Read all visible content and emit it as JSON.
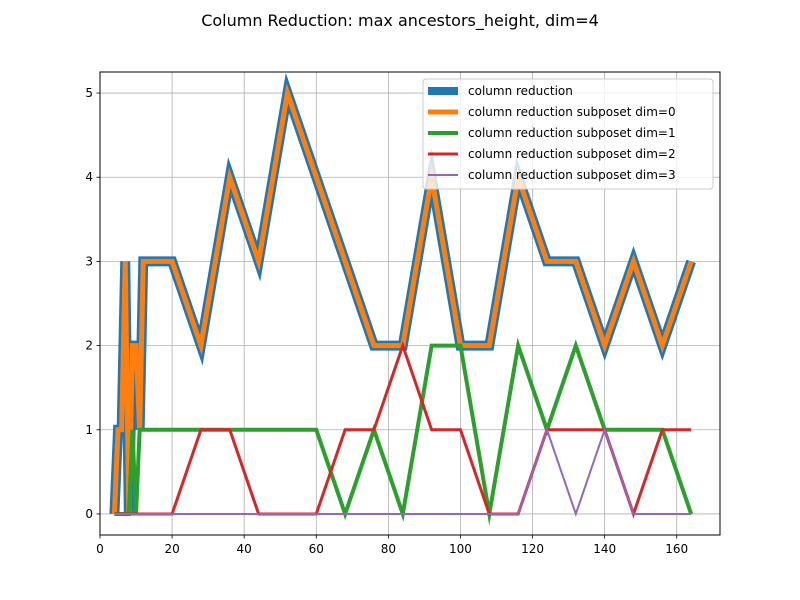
{
  "chart_data": {
    "type": "line",
    "title": "Column Reduction: max ancestors_height, dim=4",
    "xlabel": "",
    "ylabel": "",
    "xlim": [
      0,
      172
    ],
    "ylim": [
      -0.25,
      5.25
    ],
    "xticks": [
      0,
      20,
      40,
      60,
      80,
      100,
      120,
      140,
      160
    ],
    "yticks": [
      0,
      1,
      2,
      3,
      4,
      5
    ],
    "grid": true,
    "legend_position": "top-right",
    "series": [
      {
        "name": "column reduction",
        "color": "#1f77b4",
        "x": [
          4,
          5,
          6,
          7,
          8,
          9,
          10,
          11,
          12,
          20,
          28,
          36,
          44,
          52,
          60,
          68,
          76,
          84,
          92,
          100,
          108,
          116,
          124,
          132,
          140,
          148,
          156,
          164
        ],
        "y": [
          0,
          1,
          1,
          3,
          0,
          2,
          2,
          1,
          3,
          3,
          2,
          4,
          3,
          5,
          4,
          3,
          2,
          2,
          4,
          2,
          2,
          4,
          3,
          3,
          2,
          3,
          2,
          3
        ]
      },
      {
        "name": "column reduction subposet dim=0",
        "color": "#ff7f0e",
        "x": [
          4,
          5,
          6,
          7,
          8,
          9,
          10,
          11,
          12,
          20,
          28,
          36,
          44,
          52,
          60,
          68,
          76,
          84,
          92,
          100,
          108,
          116,
          124,
          132,
          140,
          148,
          156,
          164
        ],
        "y": [
          0,
          1,
          1,
          3,
          0,
          2,
          2,
          1,
          3,
          3,
          2,
          4,
          3,
          5,
          4,
          3,
          2,
          2,
          4,
          2,
          2,
          4,
          3,
          3,
          2,
          3,
          2,
          3
        ]
      },
      {
        "name": "column reduction subposet dim=1",
        "color": "#2ca02c",
        "x": [
          4,
          8,
          9,
          10,
          11,
          12,
          20,
          28,
          36,
          44,
          52,
          60,
          68,
          76,
          84,
          92,
          100,
          108,
          116,
          124,
          132,
          140,
          148,
          156,
          164
        ],
        "y": [
          0,
          0,
          1,
          0,
          1,
          1,
          1,
          1,
          1,
          1,
          1,
          1,
          0,
          1,
          0,
          2,
          2,
          0,
          2,
          1,
          2,
          1,
          1,
          1,
          0
        ]
      },
      {
        "name": "column reduction subposet dim=2",
        "color": "#d62728",
        "x": [
          4,
          12,
          20,
          28,
          36,
          44,
          52,
          60,
          68,
          76,
          84,
          92,
          100,
          108,
          116,
          124,
          132,
          140,
          148,
          156,
          164
        ],
        "y": [
          0,
          0,
          0,
          1,
          1,
          0,
          0,
          0,
          1,
          1,
          2,
          1,
          1,
          0,
          0,
          1,
          1,
          1,
          0,
          1,
          1
        ]
      },
      {
        "name": "column reduction subposet dim=3",
        "color": "#9467bd",
        "x": [
          4,
          12,
          20,
          28,
          36,
          44,
          52,
          60,
          68,
          76,
          84,
          92,
          100,
          108,
          116,
          124,
          132,
          140,
          148,
          156,
          164
        ],
        "y": [
          0,
          0,
          0,
          0,
          0,
          0,
          0,
          0,
          0,
          0,
          0,
          0,
          0,
          0,
          0,
          1,
          0,
          1,
          0,
          0,
          0
        ]
      }
    ]
  }
}
